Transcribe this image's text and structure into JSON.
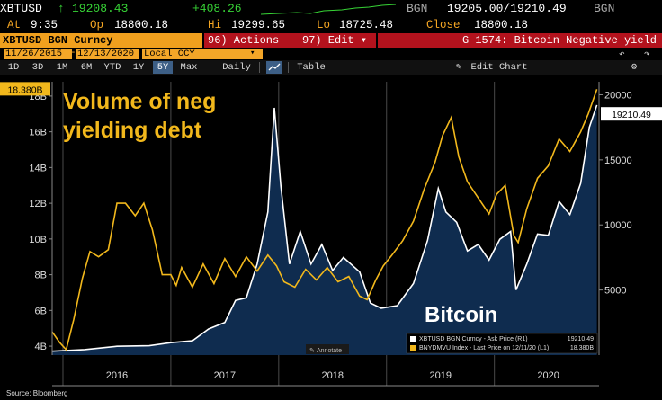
{
  "ticker": {
    "symbol": "XBTUSD",
    "arrow": "↑",
    "last": "19208.43",
    "change": "+408.26",
    "source1": "BGN",
    "bid_ask": "19205.00/19210.49",
    "source2": "BGN"
  },
  "quote": {
    "time_label": "At",
    "time": "9:35",
    "open_label": "Op",
    "open": "18800.18",
    "high_label": "Hi",
    "high": "19299.65",
    "low_label": "Lo",
    "low": "18725.48",
    "close_label": "Close",
    "close": "18800.18"
  },
  "menu": {
    "security": "XBTUSD BGN Curncy",
    "actions": "96) Actions ▾",
    "edit": "97) Edit ▾",
    "title": "G 1574: Bitcoin Negative yield"
  },
  "options": {
    "start_date": "11/26/2015",
    "end_date": "12/13/2020",
    "currency": "Local CCY"
  },
  "range_buttons": [
    "1D",
    "3D",
    "1M",
    "6M",
    "YTD",
    "1Y",
    "5Y",
    "Max"
  ],
  "range_selected": "5Y",
  "frequency": "Daily ▾",
  "table_label": "Table",
  "edit_chart_label": "Edit Chart",
  "chart_data": {
    "type": "line",
    "x_tick_labels": [
      "2016",
      "2017",
      "2018",
      "2019",
      "2020"
    ],
    "left_axis_ticks": [
      "4B",
      "6B",
      "8B",
      "10B",
      "12B",
      "14B",
      "16B",
      "18B"
    ],
    "right_axis_ticks": [
      "5000",
      "10000",
      "15000",
      "20000"
    ],
    "annotation_main": "Volume of neg yielding debt",
    "annotation_bitcoin": "Bitcoin",
    "annotate_button": "Annotate",
    "last_value_left": "18.380B",
    "last_value_right": "19210.49",
    "legend": [
      {
        "name": "XBTUSD BGN Curncy - Ask Price (R1)",
        "value": "19210.49",
        "color": "#ffffff"
      },
      {
        "name": "BNYDMVU Index - Last Price on 12/11/20 (L1)",
        "value": "18.380B",
        "color": "#f2b81c"
      }
    ],
    "series": [
      {
        "name": "BNYDMVU Index",
        "axis": "left",
        "color": "#f2b81c",
        "unit": "B",
        "points": [
          [
            2015.9,
            4.8
          ],
          [
            2015.97,
            4.2
          ],
          [
            2016.03,
            3.8
          ],
          [
            2016.1,
            5.5
          ],
          [
            2016.18,
            7.8
          ],
          [
            2016.25,
            9.3
          ],
          [
            2016.33,
            9.0
          ],
          [
            2016.42,
            9.4
          ],
          [
            2016.5,
            12.0
          ],
          [
            2016.58,
            12.0
          ],
          [
            2016.67,
            11.3
          ],
          [
            2016.75,
            12.0
          ],
          [
            2016.83,
            10.5
          ],
          [
            2016.92,
            8.0
          ],
          [
            2017.0,
            8.0
          ],
          [
            2017.05,
            7.4
          ],
          [
            2017.1,
            8.4
          ],
          [
            2017.2,
            7.3
          ],
          [
            2017.3,
            8.6
          ],
          [
            2017.4,
            7.5
          ],
          [
            2017.5,
            8.9
          ],
          [
            2017.6,
            7.9
          ],
          [
            2017.7,
            9.0
          ],
          [
            2017.8,
            8.2
          ],
          [
            2017.9,
            9.1
          ],
          [
            2017.98,
            8.5
          ],
          [
            2018.05,
            7.6
          ],
          [
            2018.15,
            7.3
          ],
          [
            2018.25,
            8.3
          ],
          [
            2018.35,
            7.7
          ],
          [
            2018.45,
            8.4
          ],
          [
            2018.55,
            7.6
          ],
          [
            2018.65,
            7.9
          ],
          [
            2018.75,
            6.8
          ],
          [
            2018.82,
            6.6
          ],
          [
            2018.9,
            7.7
          ],
          [
            2018.97,
            8.5
          ],
          [
            2019.05,
            9.1
          ],
          [
            2019.15,
            9.9
          ],
          [
            2019.25,
            11.0
          ],
          [
            2019.35,
            12.8
          ],
          [
            2019.45,
            14.3
          ],
          [
            2019.52,
            15.8
          ],
          [
            2019.6,
            16.8
          ],
          [
            2019.67,
            14.6
          ],
          [
            2019.75,
            13.2
          ],
          [
            2019.85,
            12.3
          ],
          [
            2019.95,
            11.4
          ],
          [
            2020.02,
            12.5
          ],
          [
            2020.1,
            13.0
          ],
          [
            2020.18,
            10.2
          ],
          [
            2020.22,
            9.8
          ],
          [
            2020.3,
            11.7
          ],
          [
            2020.4,
            13.4
          ],
          [
            2020.5,
            14.1
          ],
          [
            2020.6,
            15.6
          ],
          [
            2020.7,
            14.9
          ],
          [
            2020.8,
            16.0
          ],
          [
            2020.87,
            17.0
          ],
          [
            2020.95,
            18.38
          ]
        ]
      },
      {
        "name": "XBTUSD BGN Curncy",
        "axis": "right",
        "color": "#ffffff",
        "points": [
          [
            2015.9,
            300
          ],
          [
            2016.2,
            420
          ],
          [
            2016.5,
            680
          ],
          [
            2016.8,
            720
          ],
          [
            2017.0,
            950
          ],
          [
            2017.2,
            1100
          ],
          [
            2017.35,
            2000
          ],
          [
            2017.5,
            2500
          ],
          [
            2017.6,
            4200
          ],
          [
            2017.7,
            4400
          ],
          [
            2017.8,
            7000
          ],
          [
            2017.9,
            11000
          ],
          [
            2017.96,
            19000
          ],
          [
            2018.02,
            13000
          ],
          [
            2018.1,
            7000
          ],
          [
            2018.2,
            9500
          ],
          [
            2018.3,
            7000
          ],
          [
            2018.4,
            8500
          ],
          [
            2018.5,
            6500
          ],
          [
            2018.6,
            7500
          ],
          [
            2018.75,
            6400
          ],
          [
            2018.85,
            4000
          ],
          [
            2018.95,
            3600
          ],
          [
            2019.1,
            3800
          ],
          [
            2019.25,
            5500
          ],
          [
            2019.38,
            8800
          ],
          [
            2019.48,
            12800
          ],
          [
            2019.55,
            11000
          ],
          [
            2019.65,
            10200
          ],
          [
            2019.75,
            8000
          ],
          [
            2019.85,
            8500
          ],
          [
            2019.95,
            7300
          ],
          [
            2020.05,
            8900
          ],
          [
            2020.15,
            9500
          ],
          [
            2020.2,
            5000
          ],
          [
            2020.3,
            7000
          ],
          [
            2020.4,
            9300
          ],
          [
            2020.5,
            9200
          ],
          [
            2020.6,
            11800
          ],
          [
            2020.7,
            10800
          ],
          [
            2020.8,
            13200
          ],
          [
            2020.88,
            17500
          ],
          [
            2020.95,
            19210
          ]
        ]
      }
    ],
    "left_axis_range": [
      3.5,
      18.8
    ],
    "right_axis_range": [
      0,
      21000
    ],
    "grid": "vertical lines at year boundaries"
  },
  "footer": {
    "source": "Source: Bloomberg"
  }
}
